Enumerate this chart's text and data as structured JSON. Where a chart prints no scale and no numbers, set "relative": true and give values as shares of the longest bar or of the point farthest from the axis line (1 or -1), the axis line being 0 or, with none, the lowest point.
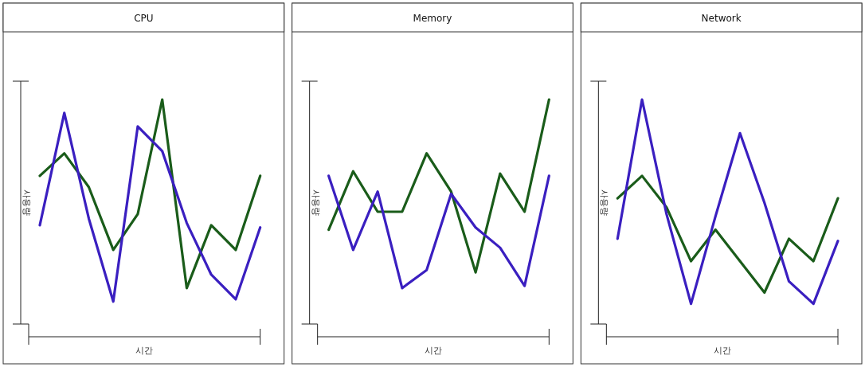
{
  "chart_data": [
    {
      "type": "line",
      "title": "CPU",
      "xlabel": "시간",
      "ylabel": "사용량",
      "relative": true,
      "categories": [
        null,
        null,
        null,
        null,
        null,
        null,
        null,
        null,
        null,
        null
      ],
      "series": [
        {
          "color": "#1a5c1a",
          "values": [
            0.66,
            0.76,
            0.61,
            0.33,
            0.49,
            1.0,
            0.16,
            0.44,
            0.33,
            0.66
          ]
        },
        {
          "color": "#3a1fc0",
          "values": [
            0.44,
            0.94,
            0.47,
            0.1,
            0.88,
            0.77,
            0.45,
            0.22,
            0.11,
            0.43
          ]
        }
      ]
    },
    {
      "type": "line",
      "title": "Memory",
      "xlabel": "시간",
      "ylabel": "사용량",
      "relative": true,
      "categories": [
        null,
        null,
        null,
        null,
        null,
        null,
        null,
        null,
        null,
        null
      ],
      "series": [
        {
          "color": "#1a5c1a",
          "values": [
            0.42,
            0.68,
            0.5,
            0.5,
            0.76,
            0.59,
            0.23,
            0.67,
            0.5,
            1.0
          ]
        },
        {
          "color": "#3a1fc0",
          "values": [
            0.66,
            0.33,
            0.59,
            0.16,
            0.24,
            0.58,
            0.43,
            0.34,
            0.17,
            0.66
          ]
        }
      ]
    },
    {
      "type": "line",
      "title": "Network",
      "xlabel": "시간",
      "ylabel": "사용량",
      "relative": true,
      "categories": [
        null,
        null,
        null,
        null,
        null,
        null,
        null,
        null,
        null,
        null
      ],
      "series": [
        {
          "color": "#1a5c1a",
          "values": [
            0.56,
            0.66,
            0.52,
            0.28,
            0.42,
            0.28,
            0.14,
            0.38,
            0.28,
            0.56
          ]
        },
        {
          "color": "#3a1fc0",
          "values": [
            0.38,
            1.0,
            0.49,
            0.09,
            0.48,
            0.85,
            0.54,
            0.19,
            0.09,
            0.37
          ]
        }
      ]
    }
  ]
}
